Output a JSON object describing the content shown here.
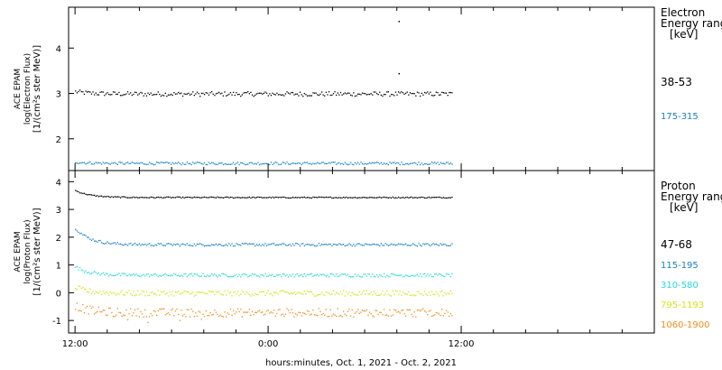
{
  "chart_data": [
    {
      "type": "scatter",
      "panel": "electron",
      "ylabel_lines": [
        "ACE EPAM",
        "log(Electron Flux)",
        "[1/(cm²s ster MeV)]"
      ],
      "legend_title_lines": [
        "Electron",
        "Energy ranges",
        "[keV]"
      ],
      "ylim": [
        1.3,
        4.9
      ],
      "yticks": [
        2,
        3,
        4
      ],
      "xlim": [
        -0.4,
        36
      ],
      "series": [
        {
          "name": "38-53",
          "color": "#000000",
          "level": 3.0,
          "start_level": 3.05,
          "noise": 0.05,
          "x_end": 23.4,
          "outliers": [
            [
              20.1,
              4.6
            ],
            [
              20.1,
              3.45
            ]
          ]
        },
        {
          "name": "175-315",
          "color": "#1a7fc1",
          "level": 1.47,
          "start_level": 1.5,
          "noise": 0.03,
          "x_end": 23.4,
          "outliers": []
        }
      ]
    },
    {
      "type": "scatter",
      "panel": "proton",
      "ylabel_lines": [
        "ACE EPAM",
        "log(Proton Flux)",
        "[1/(cm²s ster MeV)]"
      ],
      "legend_title_lines": [
        "Proton",
        "Energy ranges",
        "[keV]"
      ],
      "ylim": [
        -1.45,
        4.4
      ],
      "yticks": [
        -1,
        0,
        1,
        2,
        3,
        4
      ],
      "xlim": [
        -0.4,
        36
      ],
      "series": [
        {
          "name": "47-68",
          "color": "#000000",
          "level": 3.45,
          "start_level": 3.7,
          "noise": 0.02,
          "x_end": 23.4,
          "outliers": []
        },
        {
          "name": "115-195",
          "color": "#1a7fc1",
          "level": 1.75,
          "start_level": 2.35,
          "noise": 0.05,
          "x_end": 23.4,
          "outliers": []
        },
        {
          "name": "310-580",
          "color": "#27d8d8",
          "level": 0.65,
          "start_level": 0.95,
          "noise": 0.06,
          "x_end": 23.4,
          "outliers": []
        },
        {
          "name": "795-1193",
          "color": "#d9e21a",
          "level": 0.0,
          "start_level": 0.2,
          "noise": 0.1,
          "x_end": 23.4,
          "outliers": []
        },
        {
          "name": "1060-1900",
          "color": "#f08c1e",
          "level": -0.7,
          "start_level": -0.45,
          "noise": 0.15,
          "x_end": 23.4,
          "outliers": []
        }
      ]
    }
  ],
  "x_axis": {
    "ticks": [
      {
        "x": 0,
        "label": "12:00"
      },
      {
        "x": 12,
        "label": "0:00"
      },
      {
        "x": 24,
        "label": "12:00"
      }
    ],
    "minor_step": 2,
    "title": "hours:minutes, Oct.  1, 2021 - Oct.  2, 2021"
  }
}
